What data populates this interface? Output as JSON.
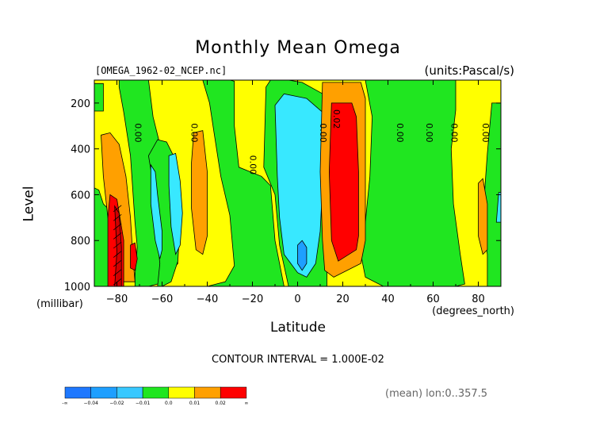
{
  "chart_data": {
    "type": "heatmap",
    "title": "Monthly Mean Omega",
    "file_label": "[OMEGA_1962-02_NCEP.nc]",
    "units_label": "(units:Pascal/s)",
    "xlabel": "Latitude",
    "xunit": "(degrees_north)",
    "ylabel": "Level",
    "yunit": "(millibar)",
    "xlim": [
      -90,
      90
    ],
    "ylim": [
      1000,
      100
    ],
    "x_ticks": [
      -80,
      -60,
      -40,
      -20,
      0,
      20,
      40,
      60,
      80
    ],
    "x_tick_labels": [
      "−80",
      "−60",
      "−40",
      "−20",
      "0",
      "20",
      "40",
      "60",
      "80"
    ],
    "y_ticks": [
      200,
      400,
      600,
      800,
      1000
    ],
    "y_tick_labels": [
      "200",
      "400",
      "600",
      "800",
      "1000"
    ],
    "contour_interval": "CONTOUR INTERVAL = 1.000E-02",
    "mean_label": "(mean) lon:0..357.5",
    "contour_labels": [
      {
        "text": "0.00",
        "lat": -72,
        "level": 330
      },
      {
        "text": "0.00",
        "lat": -47,
        "level": 330
      },
      {
        "text": "0.00",
        "lat": -21,
        "level": 470
      },
      {
        "text": "0.00",
        "lat": 10,
        "level": 330
      },
      {
        "text": "0.02",
        "lat": 16,
        "level": 270
      },
      {
        "text": "0.00",
        "lat": 44,
        "level": 330
      },
      {
        "text": "0.00",
        "lat": 57,
        "level": 330
      },
      {
        "text": "0.00",
        "lat": 68,
        "level": 330
      },
      {
        "text": "0.00",
        "lat": 82,
        "level": 330
      }
    ],
    "regions": [
      {
        "band": "yellow",
        "outline": [
          [
            -90,
            100
          ],
          [
            90,
            100
          ],
          [
            90,
            1000
          ],
          [
            -90,
            1000
          ]
        ]
      },
      {
        "band": "green",
        "outline": [
          [
            -90,
            115
          ],
          [
            -86,
            115
          ],
          [
            -86,
            235
          ],
          [
            -90,
            235
          ]
        ]
      },
      {
        "band": "green",
        "outline": [
          [
            -79,
            100
          ],
          [
            -66,
            100
          ],
          [
            -64,
            260
          ],
          [
            -61,
            380
          ],
          [
            -59,
            460
          ],
          [
            -55,
            560
          ],
          [
            -53,
            900
          ],
          [
            -60,
            985
          ],
          [
            -66,
            1000
          ],
          [
            -72,
            1000
          ],
          [
            -72,
            950
          ],
          [
            -71,
            830
          ],
          [
            -72,
            720
          ],
          [
            -74,
            430
          ],
          [
            -77,
            240
          ],
          [
            -79,
            130
          ]
        ]
      },
      {
        "band": "green",
        "outline": [
          [
            -66,
            430
          ],
          [
            -63,
            610
          ],
          [
            -62,
            800
          ],
          [
            -61,
            900
          ],
          [
            -62,
            1000
          ],
          [
            -60,
            1000
          ],
          [
            -56,
            980
          ],
          [
            -53,
            890
          ],
          [
            -52,
            720
          ],
          [
            -53,
            540
          ],
          [
            -55,
            430
          ],
          [
            -58,
            370
          ],
          [
            -62,
            360
          ]
        ]
      },
      {
        "band": "green",
        "outline": [
          [
            -42,
            100
          ],
          [
            -30,
            100
          ],
          [
            -28,
            105
          ],
          [
            -28,
            300
          ],
          [
            -26,
            480
          ],
          [
            -16,
            520
          ],
          [
            -12,
            560
          ],
          [
            -10,
            800
          ],
          [
            -6,
            1000
          ],
          [
            -40,
            1000
          ],
          [
            -32,
            980
          ],
          [
            -28,
            910
          ],
          [
            -30,
            690
          ],
          [
            -34,
            520
          ],
          [
            -37,
            330
          ],
          [
            -39,
            200
          ]
        ]
      },
      {
        "band": "green",
        "outline": [
          [
            -14,
            130
          ],
          [
            -12,
            100
          ],
          [
            -4,
            100
          ],
          [
            2,
            110
          ],
          [
            13,
            170
          ],
          [
            13,
            1000
          ],
          [
            0,
            1000
          ],
          [
            0,
            1000
          ],
          [
            -4,
            1000
          ],
          [
            -8,
            820
          ],
          [
            -10,
            600
          ],
          [
            -15,
            480
          ],
          [
            -14,
            130
          ]
        ]
      },
      {
        "band": "green",
        "outline": [
          [
            30,
            100
          ],
          [
            70,
            100
          ],
          [
            70,
            230
          ],
          [
            68,
            400
          ],
          [
            69,
            640
          ],
          [
            72,
            860
          ],
          [
            74,
            990
          ],
          [
            70,
            1000
          ],
          [
            38,
            1000
          ],
          [
            30,
            960
          ],
          [
            28,
            860
          ],
          [
            30,
            720
          ],
          [
            32,
            520
          ],
          [
            33,
            260
          ]
        ]
      },
      {
        "band": "green",
        "outline": [
          [
            -90,
            570
          ],
          [
            -88,
            580
          ],
          [
            -86,
            640
          ],
          [
            -80,
            700
          ],
          [
            -78,
            1000
          ],
          [
            -90,
            1000
          ]
        ]
      },
      {
        "band": "green",
        "outline": [
          [
            86,
            200
          ],
          [
            90,
            200
          ],
          [
            90,
            1000
          ],
          [
            84,
            1000
          ],
          [
            84,
            860
          ],
          [
            82,
            740
          ],
          [
            83,
            560
          ],
          [
            84,
            420
          ]
        ]
      },
      {
        "band": "cyan",
        "outline": [
          [
            -10,
            210
          ],
          [
            -6,
            160
          ],
          [
            4,
            180
          ],
          [
            11,
            240
          ],
          [
            12,
            360
          ],
          [
            11,
            560
          ],
          [
            10,
            760
          ],
          [
            8,
            900
          ],
          [
            4,
            960
          ],
          [
            0,
            940
          ],
          [
            -3,
            900
          ],
          [
            -6,
            860
          ],
          [
            -8,
            700
          ],
          [
            -9,
            520
          ]
        ]
      },
      {
        "band": "cyan",
        "outline": [
          [
            -65,
            470
          ],
          [
            -63,
            500
          ],
          [
            -62,
            600
          ],
          [
            -60,
            760
          ],
          [
            -60,
            840
          ],
          [
            -61,
            880
          ],
          [
            -63,
            800
          ],
          [
            -65,
            640
          ]
        ]
      },
      {
        "band": "cyan",
        "outline": [
          [
            -57,
            430
          ],
          [
            -54,
            420
          ],
          [
            -52,
            540
          ],
          [
            -51,
            680
          ],
          [
            -52,
            820
          ],
          [
            -54,
            860
          ],
          [
            -56,
            740
          ],
          [
            -57,
            560
          ]
        ]
      },
      {
        "band": "cyan",
        "outline": [
          [
            89,
            590
          ],
          [
            90,
            590
          ],
          [
            90,
            720
          ],
          [
            88,
            720
          ]
        ]
      },
      {
        "band": "blue",
        "outline": [
          [
            0,
            820
          ],
          [
            2,
            800
          ],
          [
            4,
            830
          ],
          [
            4,
            900
          ],
          [
            2,
            930
          ],
          [
            0,
            900
          ]
        ]
      },
      {
        "band": "orange",
        "outline": [
          [
            11,
            110
          ],
          [
            28,
            110
          ],
          [
            30,
            180
          ],
          [
            30,
            800
          ],
          [
            28,
            900
          ],
          [
            16,
            960
          ],
          [
            12,
            930
          ],
          [
            11,
            800
          ],
          [
            10,
            500
          ]
        ]
      },
      {
        "band": "orange",
        "outline": [
          [
            -87,
            340
          ],
          [
            -83,
            330
          ],
          [
            -79,
            380
          ],
          [
            -76,
            520
          ],
          [
            -74,
            700
          ],
          [
            -73,
            860
          ],
          [
            -72,
            980
          ],
          [
            -78,
            980
          ],
          [
            -81,
            840
          ],
          [
            -84,
            700
          ],
          [
            -86,
            520
          ]
        ]
      },
      {
        "band": "orange",
        "outline": [
          [
            -46,
            330
          ],
          [
            -42,
            320
          ],
          [
            -40,
            500
          ],
          [
            -40,
            780
          ],
          [
            -42,
            860
          ],
          [
            -45,
            840
          ],
          [
            -47,
            660
          ],
          [
            -47,
            460
          ]
        ]
      },
      {
        "band": "orange",
        "outline": [
          [
            80,
            550
          ],
          [
            82,
            530
          ],
          [
            84,
            640
          ],
          [
            84,
            840
          ],
          [
            82,
            860
          ],
          [
            80,
            780
          ]
        ]
      },
      {
        "band": "red",
        "outline": [
          [
            15,
            200
          ],
          [
            24,
            200
          ],
          [
            26,
            260
          ],
          [
            27,
            500
          ],
          [
            27,
            780
          ],
          [
            26,
            840
          ],
          [
            18,
            890
          ],
          [
            15,
            800
          ],
          [
            14,
            500
          ]
        ]
      },
      {
        "band": "red",
        "outline": [
          [
            -83,
            600
          ],
          [
            -80,
            620
          ],
          [
            -77,
            800
          ],
          [
            -77,
            1000
          ],
          [
            -84,
            1000
          ],
          [
            -84,
            860
          ],
          [
            -84,
            700
          ]
        ]
      },
      {
        "band": "red",
        "outline": [
          [
            -74,
            820
          ],
          [
            -72,
            810
          ],
          [
            -71,
            880
          ],
          [
            -72,
            930
          ],
          [
            -74,
            920
          ]
        ]
      },
      {
        "band": "darkred",
        "outline": [
          [
            -81,
            650
          ],
          [
            -79,
            680
          ],
          [
            -78,
            830
          ],
          [
            -78,
            1000
          ],
          [
            -81,
            1000
          ],
          [
            -80,
            850
          ]
        ]
      }
    ],
    "legend": {
      "colors": [
        "#1e78ff",
        "#1e9fff",
        "#38c8ff",
        "#20e620",
        "#ffff00",
        "#ffa000",
        "#ff0000"
      ],
      "labels": [
        "-∞",
        "−0.04",
        "−0.02",
        "−0.01",
        "0.0",
        "0.01",
        "0.02",
        "∞"
      ]
    },
    "band_colors": {
      "blue": "#1e9fff",
      "cyan": "#38e8ff",
      "green": "#20e620",
      "yellow": "#ffff00",
      "orange": "#ffa000",
      "red": "#ff0000",
      "darkred": "#d00000"
    }
  }
}
